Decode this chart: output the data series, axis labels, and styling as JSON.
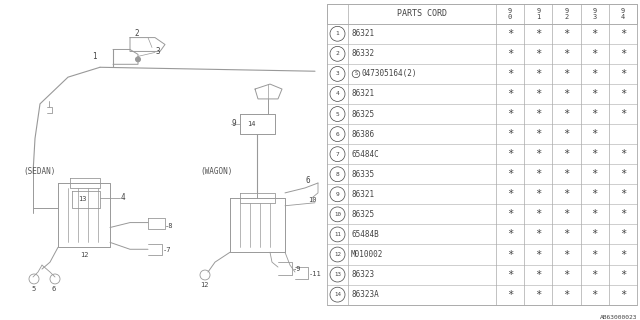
{
  "bg_color": "#ffffff",
  "table_header": "PARTS CORD",
  "years": [
    "9\n0",
    "9\n1",
    "9\n2",
    "9\n3",
    "9\n4"
  ],
  "rows": [
    {
      "num": "1",
      "part": "86321",
      "marks": [
        "*",
        "*",
        "*",
        "*",
        "*"
      ]
    },
    {
      "num": "2",
      "part": "86332",
      "marks": [
        "*",
        "*",
        "*",
        "*",
        "*"
      ]
    },
    {
      "num": "3",
      "part": "047305164(2)",
      "marks": [
        "*",
        "*",
        "*",
        "*",
        "*"
      ],
      "special": true
    },
    {
      "num": "4",
      "part": "86321",
      "marks": [
        "*",
        "*",
        "*",
        "*",
        "*"
      ]
    },
    {
      "num": "5",
      "part": "86325",
      "marks": [
        "*",
        "*",
        "*",
        "*",
        "*"
      ]
    },
    {
      "num": "6",
      "part": "86386",
      "marks": [
        "*",
        "*",
        "*",
        "*",
        ""
      ]
    },
    {
      "num": "7",
      "part": "65484C",
      "marks": [
        "*",
        "*",
        "*",
        "*",
        "*"
      ]
    },
    {
      "num": "8",
      "part": "86335",
      "marks": [
        "*",
        "*",
        "*",
        "*",
        "*"
      ]
    },
    {
      "num": "9",
      "part": "86321",
      "marks": [
        "*",
        "*",
        "*",
        "*",
        "*"
      ]
    },
    {
      "num": "10",
      "part": "86325",
      "marks": [
        "*",
        "*",
        "*",
        "*",
        "*"
      ]
    },
    {
      "num": "11",
      "part": "65484B",
      "marks": [
        "*",
        "*",
        "*",
        "*",
        "*"
      ]
    },
    {
      "num": "12",
      "part": "M010002",
      "marks": [
        "*",
        "*",
        "*",
        "*",
        "*"
      ]
    },
    {
      "num": "13",
      "part": "86323",
      "marks": [
        "*",
        "*",
        "*",
        "*",
        "*"
      ]
    },
    {
      "num": "14",
      "part": "86323A",
      "marks": [
        "*",
        "*",
        "*",
        "*",
        "*"
      ]
    }
  ],
  "footnote": "AB63000023",
  "line_color": "#aaaaaa",
  "text_color": "#444444",
  "draw_color": "#999999",
  "sedan_label": "(SEDAN)",
  "wagon_label": "(WAGON)"
}
